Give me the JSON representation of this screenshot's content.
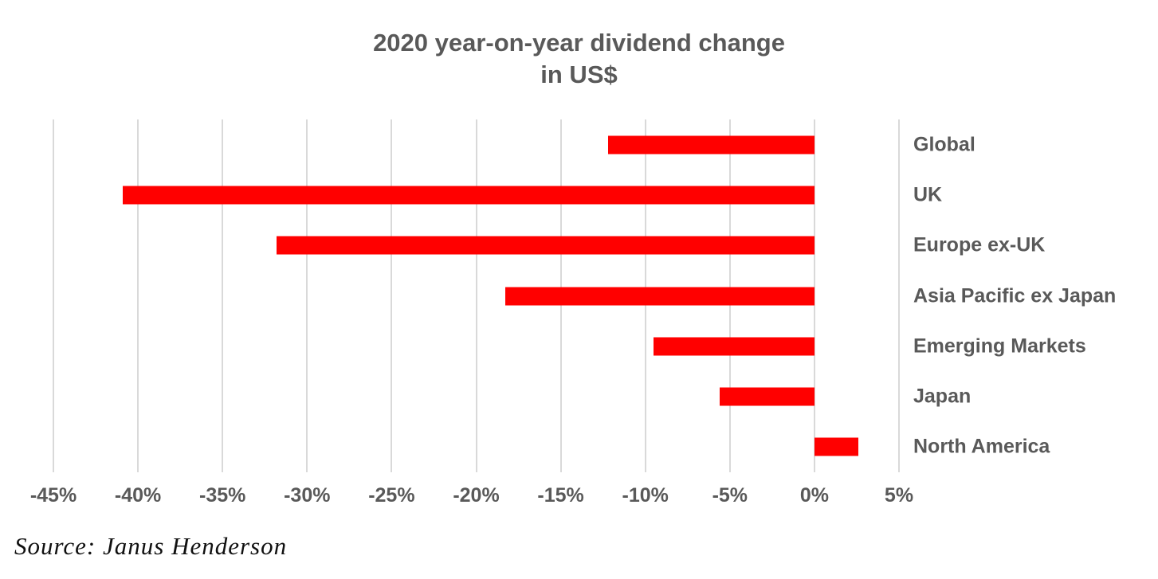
{
  "chart": {
    "title_line1": "2020 year-on-year dividend change",
    "title_line2": "in US$"
  },
  "source_caption": "Source: Janus Henderson",
  "colors": {
    "bar": "#ff0000",
    "text": "#595959",
    "gridline": "#d9d9d9",
    "source_text": "#101010",
    "background": "#ffffff"
  },
  "chart_data": {
    "type": "bar",
    "orientation": "horizontal",
    "title": "2020 year-on-year dividend change in US$",
    "categories": [
      "Global",
      "UK",
      "Europe ex-UK",
      "Asia Pacific ex Japan",
      "Emerging Markets",
      "Japan",
      "North America"
    ],
    "values": [
      -12.2,
      -40.9,
      -31.8,
      -18.3,
      -9.5,
      -5.6,
      2.6
    ],
    "unit": "%",
    "xlim": [
      -45,
      5
    ],
    "xticks": [
      -45,
      -40,
      -35,
      -30,
      -25,
      -20,
      -15,
      -10,
      -5,
      0,
      5
    ],
    "xtick_labels": [
      "-45%",
      "-40%",
      "-35%",
      "-30%",
      "-25%",
      "-20%",
      "-15%",
      "-10%",
      "-5%",
      "0%",
      "5%"
    ],
    "grid": "vertical-gridlines-on",
    "legend": "none",
    "category_labels_position": "right",
    "source": "Source: Janus Henderson"
  }
}
